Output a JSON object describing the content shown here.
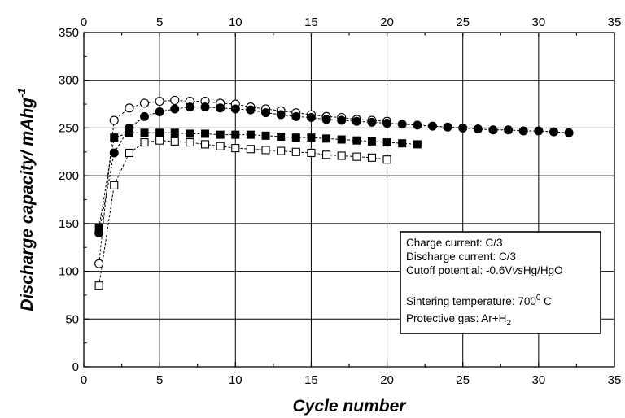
{
  "chart_data": {
    "type": "scatter",
    "xlabel": "Cycle number",
    "ylabel": "Discharge capacity/ mAhg",
    "ylabel_sup": "-1",
    "xlim": [
      0,
      35
    ],
    "ylim": [
      0,
      350
    ],
    "x_ticks": [
      0,
      5,
      10,
      15,
      20,
      25,
      30,
      35
    ],
    "y_ticks": [
      0,
      50,
      100,
      150,
      200,
      250,
      300,
      350
    ],
    "grid": true,
    "series": [
      {
        "marker": "open-circle",
        "x": [
          1,
          2,
          3,
          4,
          5,
          6,
          7,
          8,
          9,
          10,
          11,
          12,
          13,
          14,
          15,
          16,
          17,
          18,
          19,
          20
        ],
        "y": [
          108,
          258,
          271,
          276,
          278,
          279,
          278,
          278,
          276,
          275,
          272,
          270,
          268,
          266,
          264,
          262,
          261,
          259,
          258,
          257
        ]
      },
      {
        "marker": "filled-circle",
        "x": [
          1,
          2,
          3,
          4,
          5,
          6,
          7,
          8,
          9,
          10,
          11,
          12,
          13,
          14,
          15,
          16,
          17,
          18,
          19,
          20,
          21,
          22,
          23,
          24,
          25,
          26,
          27,
          28,
          29,
          30,
          31,
          32
        ],
        "y": [
          140,
          224,
          250,
          262,
          267,
          270,
          272,
          272,
          271,
          270,
          269,
          266,
          264,
          262,
          261,
          259,
          258,
          257,
          256,
          255,
          254,
          253,
          252,
          251,
          250,
          249,
          248,
          248,
          247,
          247,
          246,
          245
        ]
      },
      {
        "marker": "filled-square",
        "x": [
          1,
          2,
          3,
          4,
          5,
          6,
          7,
          8,
          9,
          10,
          11,
          12,
          13,
          14,
          15,
          16,
          17,
          18,
          19,
          20,
          21,
          22
        ],
        "y": [
          146,
          240,
          245,
          245,
          245,
          245,
          244,
          244,
          243,
          243,
          243,
          242,
          241,
          240,
          240,
          239,
          238,
          237,
          236,
          235,
          234,
          233
        ]
      },
      {
        "marker": "open-square",
        "x": [
          1,
          2,
          3,
          4,
          5,
          6,
          7,
          8,
          9,
          10,
          11,
          12,
          13,
          14,
          15,
          16,
          17,
          18,
          19,
          20
        ],
        "y": [
          85,
          190,
          224,
          235,
          237,
          236,
          235,
          233,
          231,
          229,
          228,
          227,
          226,
          225,
          224,
          222,
          221,
          220,
          219,
          217
        ]
      }
    ],
    "annotation": {
      "lines": [
        {
          "text": "Charge current:  C/3"
        },
        {
          "text": "Discharge current: C/3"
        },
        {
          "pre": "Cutoff potential: -0.6V",
          "italic": "vs",
          "post": "Hg/HgO"
        },
        {
          "text": ""
        },
        {
          "pre": "Sintering temperature: 700",
          "sup": "0",
          "post": " C"
        },
        {
          "pre": "Protective gas: Ar+H",
          "sub": "2"
        }
      ]
    }
  }
}
